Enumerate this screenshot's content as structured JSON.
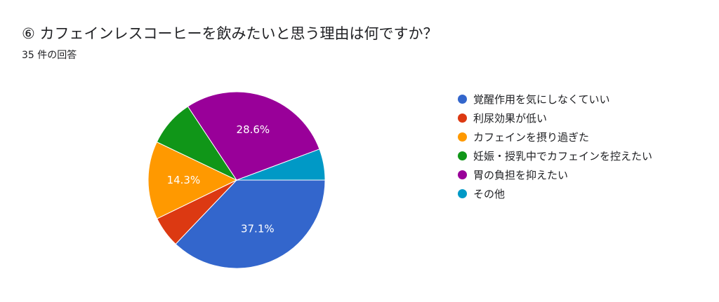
{
  "header": {
    "title": "⑥ カフェインレスコーヒーを飲みたいと思う理由は何ですか？",
    "response_count": "35 件の回答"
  },
  "chart_data": {
    "type": "pie",
    "categories": [
      "覚醒作用を気にしなくていい",
      "利尿効果が低い",
      "カフェインを摂り過ぎた",
      "妊娠・授乳中でカフェインを控えたい",
      "胃の負担を抑えたい",
      "その他"
    ],
    "values": [
      37.1,
      5.7,
      14.3,
      8.6,
      28.6,
      5.7
    ],
    "data_labels": [
      "37.1%",
      "",
      "14.3%",
      "",
      "28.6%",
      ""
    ],
    "colors": [
      "#3366cc",
      "#dc3912",
      "#ff9900",
      "#109618",
      "#990099",
      "#0099c6"
    ],
    "legend_position": "right"
  }
}
